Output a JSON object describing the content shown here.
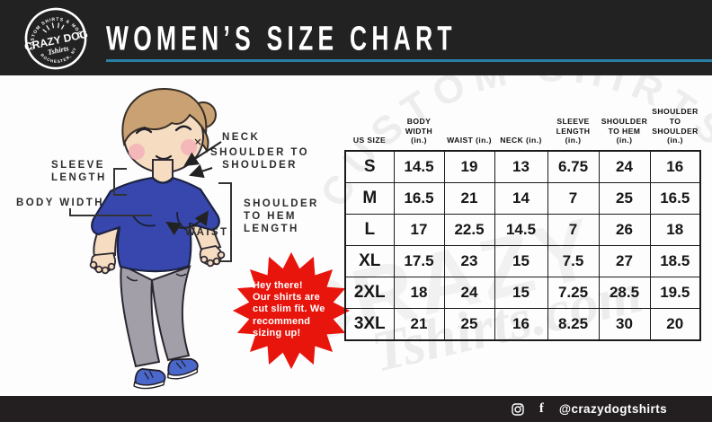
{
  "header": {
    "title": "WOMEN’S SIZE CHART",
    "logo": {
      "arc_top": "CUSTOM SHIRTS & MORE",
      "name": "CRAZY DOG",
      "script": "Tshirts",
      "arc_bottom": "ROCHESTER, NY"
    }
  },
  "diagram": {
    "labels": {
      "sleeve_length": "SLEEVE\nLENGTH",
      "body_width": "BODY WIDTH",
      "neck": "NECK",
      "shoulder_to_shoulder": "SHOULDER TO\nSHOULDER",
      "shoulder_to_hem": "SHOULDER\nTO HEM\nLENGTH",
      "waist": "WAIST"
    },
    "callout": {
      "lines": [
        "Hey there!",
        "Our shirts are",
        "cut slim fit. We",
        "recommend",
        "sizing up!"
      ]
    }
  },
  "size_chart": {
    "columns": [
      "US SIZE",
      "BODY\nWIDTH\n(in.)",
      "WAIST (in.)",
      "NECK (in.)",
      "SLEEVE\nLENGTH\n(in.)",
      "SHOULDER\nTO HEM\n(in.)",
      "SHOULDER TO\nSHOULDER\n(in.)"
    ],
    "rows": [
      {
        "size": "S",
        "values": [
          "14.5",
          "19",
          "13",
          "6.75",
          "24",
          "16"
        ]
      },
      {
        "size": "M",
        "values": [
          "16.5",
          "21",
          "14",
          "7",
          "25",
          "16.5"
        ]
      },
      {
        "size": "L",
        "values": [
          "17",
          "22.5",
          "14.5",
          "7",
          "26",
          "18"
        ]
      },
      {
        "size": "XL",
        "values": [
          "17.5",
          "23",
          "15",
          "7.5",
          "27",
          "18.5"
        ]
      },
      {
        "size": "2XL",
        "values": [
          "18",
          "24",
          "15",
          "7.25",
          "28.5",
          "19.5"
        ]
      },
      {
        "size": "3XL",
        "values": [
          "21",
          "25",
          "16",
          "8.25",
          "30",
          "20"
        ]
      }
    ]
  },
  "watermark": {
    "arc": "CUSTOM SHIRTS & MORE",
    "script": "Tshirts.com"
  },
  "footer": {
    "handle": "@crazydogtshirts",
    "facebook_glyph": "f"
  },
  "colors": {
    "header_bg": "#222222",
    "accent_line": "#2a7ea6",
    "alert_red": "#e8150d",
    "shirt_blue": "#3847ae"
  }
}
